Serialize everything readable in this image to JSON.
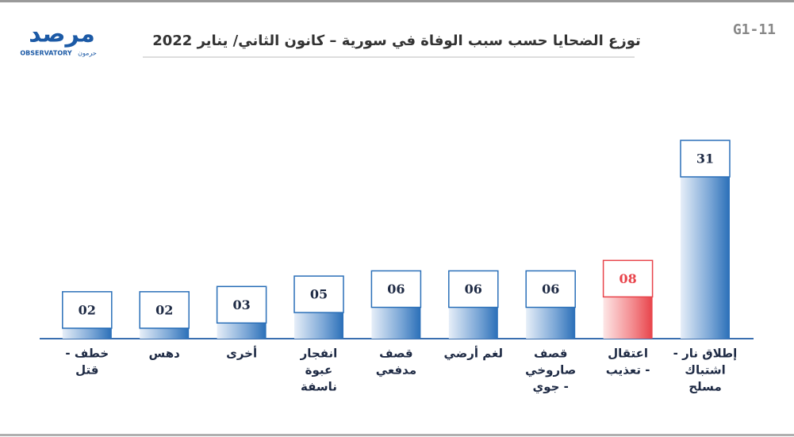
{
  "chart_data": {
    "type": "bar",
    "title": "توزع الضحايا حسب سبب الوفاة في سورية – كانون الثاني/ يناير 2022",
    "code": "G1-11",
    "logo": {
      "name": "مرصد",
      "sub": "OBSERVATORY",
      "tag": "حرمون"
    },
    "categories": [
      [
        "إطلاق نار -",
        "اشتباك",
        "مسلح"
      ],
      [
        "اعتقال",
        "- تعذيب"
      ],
      [
        "قصف",
        "صاروخي",
        "- جوي"
      ],
      [
        "لغم أرضي"
      ],
      [
        "قصف",
        "مدفعي"
      ],
      [
        "انفجار",
        "عبوة",
        "ناسفة"
      ],
      [
        "أخرى"
      ],
      [
        "دهس"
      ],
      [
        "خطف -",
        "قتل"
      ]
    ],
    "values": [
      31,
      8,
      6,
      6,
      6,
      5,
      3,
      2,
      2
    ],
    "value_labels": [
      "31",
      "08",
      "06",
      "06",
      "06",
      "05",
      "03",
      "02",
      "02"
    ],
    "colors": [
      "#2a6fb8",
      "#e8434a",
      "#2a6fb8",
      "#2a6fb8",
      "#2a6fb8",
      "#2a6fb8",
      "#2a6fb8",
      "#2a6fb8",
      "#2a6fb8"
    ]
  }
}
